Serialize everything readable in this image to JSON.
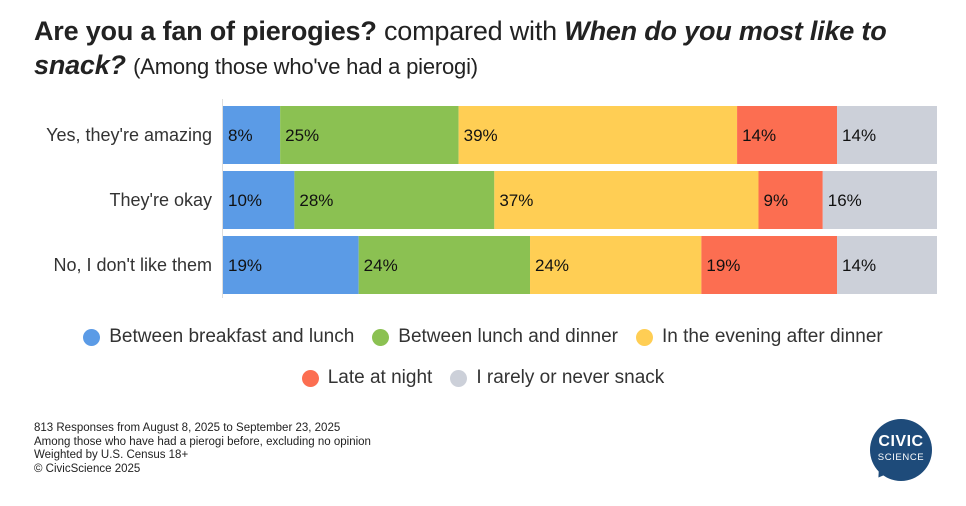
{
  "title": {
    "question1": "Are you a fan of pierogies?",
    "compared_with": "compared with",
    "question2": "When do you most like to snack?",
    "population": "(Among those who've had a pierogi)"
  },
  "chart_data": {
    "type": "bar",
    "orientation": "horizontal",
    "stacked": true,
    "percent_stacked": true,
    "categories": [
      "Yes, they're amazing",
      "They're okay",
      "No, I don't like them"
    ],
    "series": [
      {
        "name": "Between breakfast and lunch",
        "color": "#5b9be6",
        "values": [
          8,
          10,
          19
        ]
      },
      {
        "name": "Between lunch and dinner",
        "color": "#8bc152",
        "values": [
          25,
          28,
          24
        ]
      },
      {
        "name": "In the evening after dinner",
        "color": "#ffce54",
        "values": [
          39,
          37,
          24
        ]
      },
      {
        "name": "Late at night",
        "color": "#fc6e51",
        "values": [
          14,
          9,
          19
        ]
      },
      {
        "name": "I rarely or never snack",
        "color": "#ccd0d9",
        "values": [
          14,
          16,
          14
        ]
      }
    ],
    "value_suffix": "%",
    "legend_position": "bottom",
    "grid": false
  },
  "footnotes": [
    "813 Responses from August 8, 2025 to September 23, 2025",
    "Among those who have had a pierogi before, excluding no opinion",
    "Weighted by U.S. Census 18+",
    "© CivicScience 2025"
  ],
  "logo": {
    "line1": "CIVIC",
    "line2": "SCIENCE",
    "color": "#1e4b7a"
  }
}
